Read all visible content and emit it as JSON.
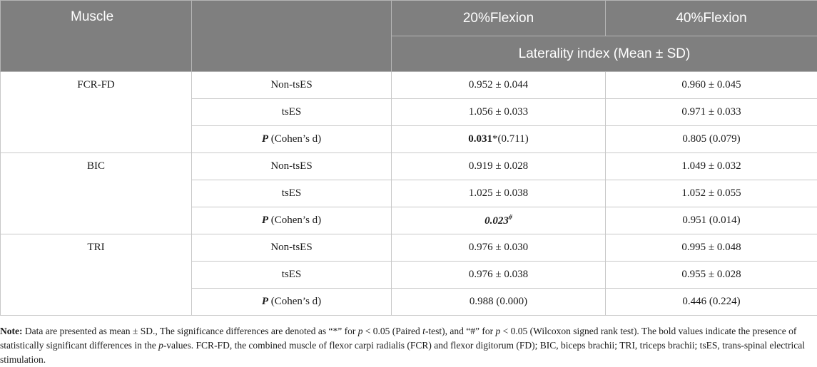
{
  "header": {
    "muscle": "Muscle",
    "col3": "20%Flexion",
    "col4": "40%Flexion",
    "subheader": "Laterality index (Mean ± SD)"
  },
  "groups": [
    {
      "muscle": "FCR-FD",
      "rows": [
        {
          "label": "Non-tsES",
          "v20": "0.952 ± 0.044",
          "v40": "0.960 ± 0.045"
        },
        {
          "label": "tsES",
          "v20": "1.056 ± 0.033",
          "v40": "0.971 ± 0.033"
        },
        {
          "p_label": "P",
          "p_suffix": " (Cohen’s d)",
          "v20_bold": "0.031",
          "v20_rest": "*(0.711)",
          "v40": "0.805 (0.079)"
        }
      ]
    },
    {
      "muscle": "BIC",
      "rows": [
        {
          "label": "Non-tsES",
          "v20": "0.919 ± 0.028",
          "v40": "1.049 ± 0.032"
        },
        {
          "label": "tsES",
          "v20": "1.025 ± 0.038",
          "v40": "1.052 ± 0.055"
        },
        {
          "p_label": "P",
          "p_suffix": " (Cohen’s d)",
          "v20_bold": "0.023",
          "v20_rest": "#",
          "v40": "0.951 (0.014)"
        }
      ]
    },
    {
      "muscle": "TRI",
      "rows": [
        {
          "label": "Non-tsES",
          "v20": "0.976 ± 0.030",
          "v40": "0.995 ± 0.048"
        },
        {
          "label": "tsES",
          "v20": "0.976 ± 0.038",
          "v40": "0.955 ± 0.028"
        },
        {
          "p_label": "P",
          "p_suffix": " (Cohen’s d)",
          "v20": "0.988 (0.000)",
          "v40": "0.446 (0.224)"
        }
      ]
    }
  ],
  "note": {
    "label": "Note:",
    "t1": " Data are presented as mean ± SD., The significance differences are denoted as “*” for ",
    "p1": "p",
    "t2": " < 0.05 (Paired ",
    "t_italic": "t",
    "t3": "-test), and “#” for ",
    "p2": "p",
    "t4": " < 0.05 (Wilcoxon signed rank test). The bold values indicate the presence of statistically significant differences in the ",
    "p3": "p",
    "t5": "-values. FCR-FD, the combined muscle of flexor carpi radialis (FCR) and flexor digitorum (FD); BIC, biceps brachii; TRI, triceps brachii; tsES, trans-spinal electrical stimulation."
  }
}
